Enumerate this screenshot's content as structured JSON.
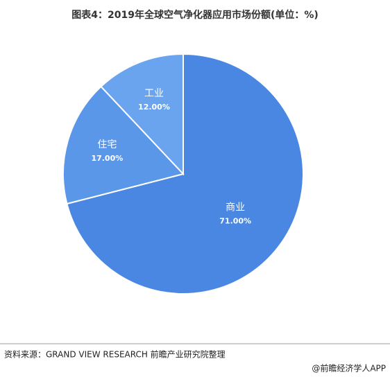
{
  "chart_data": {
    "type": "pie",
    "title": "图表4：2019年全球空气净化器应用市场份额(单位：%)",
    "categories": [
      "商业",
      "住宅",
      "工业"
    ],
    "values": [
      71,
      17,
      12
    ],
    "value_labels": [
      "71.00%",
      "17.00%",
      "12.00%"
    ],
    "colors": [
      "#4a87e2",
      "#5b97e8",
      "#6aa3ee"
    ],
    "source": "资料来源：GRAND VIEW RESEARCH 前瞻产业研究院整理",
    "credit": "@前瞻经济学人APP"
  }
}
